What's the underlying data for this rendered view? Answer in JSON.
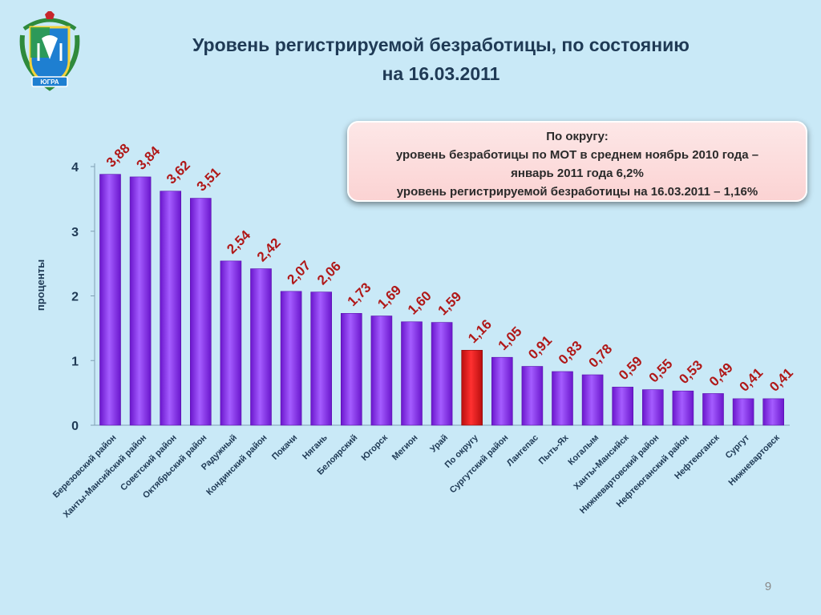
{
  "slide": {
    "title_line1": "Уровень регистрируемой безработицы, по состоянию",
    "title_line2": "на 16.03.2011",
    "emblem_icon": "coat-of-arms-icon",
    "emblem_text": "ЮГРА",
    "info_box": {
      "line1": "По округу:",
      "line2": "уровень безработицы по МОТ в среднем ноябрь 2010 года –",
      "line3": "январь 2011 года  6,2%",
      "line4": "уровень регистрируемой безработицы на 16.03.2011  – 1,16%"
    },
    "page_number": "9"
  },
  "colors": {
    "background": "#c9e9f7",
    "bar": "#8b2cf0",
    "highlight_bar": "#e11b1b",
    "value_label": "#b01818",
    "title": "#1f3a55"
  },
  "chart_data": {
    "type": "bar",
    "title": "",
    "xlabel": "",
    "ylabel": "проценты",
    "ylim": [
      0,
      4
    ],
    "yticks": [
      "0",
      "1",
      "2",
      "3",
      "4"
    ],
    "grid": false,
    "legend": "none",
    "categories": [
      "Березовский район",
      "Ханты-Мансийский район",
      "Советский район",
      "Октябрьский район",
      "Радужный",
      "Кондинский район",
      "Покачи",
      "Нягань",
      "Белоярский",
      "Югорск",
      "Мегион",
      "Урай",
      "По округу",
      "Сургутский район",
      "Лангепас",
      "Пыть-Ях",
      "Когалым",
      "Ханты-Мансийск",
      "Нижневартовский район",
      "Нефтеюганский район",
      "Нефтеюганск",
      "Сургут",
      "Нижневартовск"
    ],
    "values": [
      3.88,
      3.84,
      3.62,
      3.51,
      2.54,
      2.42,
      2.07,
      2.06,
      1.73,
      1.69,
      1.6,
      1.59,
      1.16,
      1.05,
      0.91,
      0.83,
      0.78,
      0.59,
      0.55,
      0.53,
      0.49,
      0.41,
      0.41
    ],
    "value_labels": [
      "3,88",
      "3,84",
      "3,62",
      "3,51",
      "2,54",
      "2,42",
      "2,07",
      "2,06",
      "1,73",
      "1,69",
      "1,60",
      "1,59",
      "1,16",
      "1,05",
      "0,91",
      "0,83",
      "0,78",
      "0,59",
      "0,55",
      "0,53",
      "0,49",
      "0,41",
      "0,41"
    ],
    "highlight_category": "По округу"
  }
}
